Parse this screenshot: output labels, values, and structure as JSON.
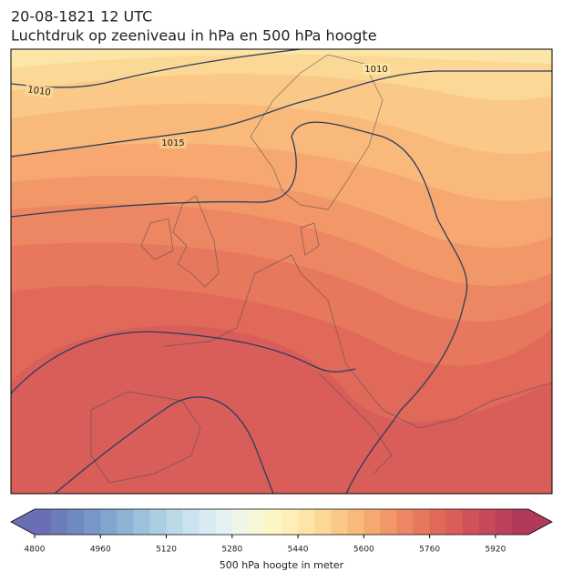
{
  "header": {
    "title": "20-08-1821 12 UTC",
    "subtitle": "Luchtdruk op zeeniveau in hPa en 500 hPa hoogte"
  },
  "contour_labels": [
    "1010",
    "1015",
    "1010"
  ],
  "colorbar": {
    "label": "500 hPa hoogte in meter",
    "range": [
      4800,
      6000
    ],
    "ticks": [
      4800,
      4960,
      5120,
      5280,
      5440,
      5600,
      5760,
      5920
    ],
    "colors": [
      "#6a6fb5",
      "#6d7cbb",
      "#7189c1",
      "#7897c8",
      "#82a5ce",
      "#8fb3d5",
      "#9dc1db",
      "#acceE2",
      "#bcd9e8",
      "#cbe3ee",
      "#d9ebf2",
      "#e5f2f2",
      "#eff6e6",
      "#f7f8d6",
      "#fcf6c6",
      "#fdefb6",
      "#fde5a5",
      "#fcd896",
      "#fbc987",
      "#f9b97b",
      "#f6a870",
      "#f29768",
      "#ed8662",
      "#e7775d",
      "#e0695a",
      "#d95d59",
      "#d05259",
      "#c6495a",
      "#bc415b",
      "#b13a5b"
    ]
  }
}
